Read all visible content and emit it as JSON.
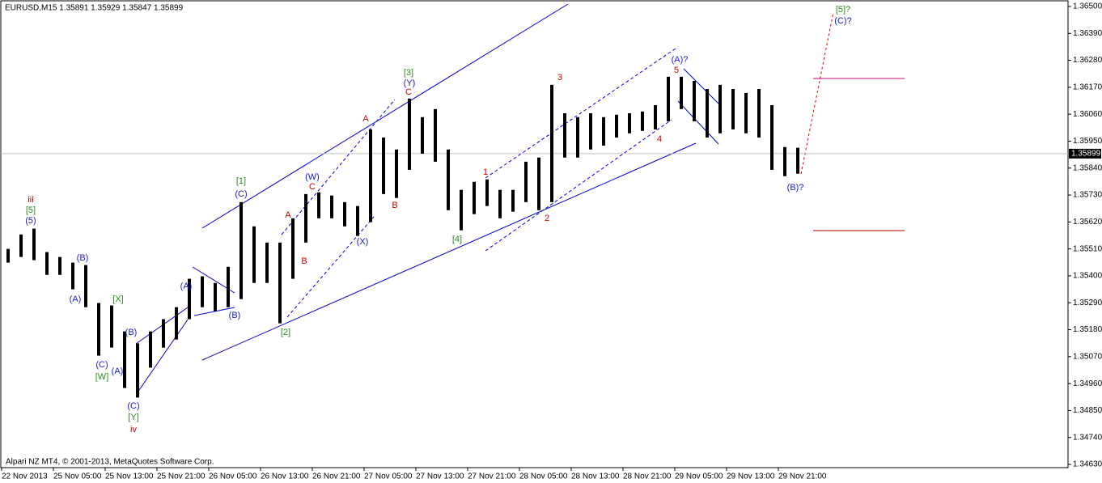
{
  "chart_data": {
    "type": "hilo",
    "title": "EURUSD,M15  1.35891 1.35929 1.35847 1.35899",
    "footer": "Alpari NZ MT4, © 2001-2013, MetaQuotes Software Corp.",
    "color": "#000000",
    "categories": [
      "22 Nov 2013",
      null,
      null,
      null,
      "25 Nov 05:00",
      null,
      null,
      null,
      "25 Nov 13:00",
      null,
      null,
      null,
      "25 Nov 21:00",
      null,
      null,
      null,
      "26 Nov 05:00",
      null,
      null,
      null,
      "26 Nov 13:00",
      null,
      null,
      null,
      "26 Nov 21:00",
      null,
      null,
      null,
      "27 Nov 05:00",
      null,
      null,
      null,
      "27 Nov 13:00",
      null,
      null,
      null,
      "27 Nov 21:00",
      null,
      null,
      null,
      "28 Nov 05:00",
      null,
      null,
      null,
      "28 Nov 13:00",
      null,
      null,
      null,
      "28 Nov 21:00",
      null,
      null,
      null,
      "29 Nov 05:00",
      null,
      null,
      null,
      "29 Nov 13:00",
      null,
      null,
      null,
      "29 Nov 21:00",
      null
    ],
    "high": [
      1.3551,
      1.35569,
      1.35593,
      1.35497,
      1.35477,
      1.35454,
      1.35444,
      1.35289,
      1.35279,
      1.35173,
      1.35124,
      1.35173,
      1.35223,
      1.35272,
      1.35388,
      1.35398,
      1.35371,
      1.35437,
      1.35701,
      1.35602,
      1.35536,
      1.35536,
      1.35635,
      1.35734,
      1.35741,
      1.35728,
      1.35701,
      1.35685,
      1.35998,
      1.35965,
      1.35916,
      1.36124,
      1.36048,
      1.36081,
      1.35916,
      1.35751,
      1.35784,
      1.35794,
      1.35751,
      1.35751,
      1.35866,
      1.35883,
      1.3618,
      1.36064,
      1.36048,
      1.36064,
      1.36048,
      1.36058,
      1.36064,
      1.36071,
      1.36097,
      1.36213,
      1.36213,
      1.36196,
      1.36163,
      1.3618,
      1.36163,
      1.36147,
      1.36163,
      1.36097,
      1.35926,
      1.35923
    ],
    "low": [
      1.35454,
      1.35477,
      1.35464,
      1.35404,
      1.35404,
      1.35345,
      1.35272,
      1.35074,
      1.35107,
      1.34942,
      1.34903,
      1.35025,
      1.35107,
      1.3514,
      1.35223,
      1.35272,
      1.35256,
      1.35272,
      1.35305,
      1.35371,
      1.35371,
      1.35206,
      1.35388,
      1.35536,
      1.35635,
      1.35635,
      1.35602,
      1.35563,
      1.35619,
      1.35734,
      1.35718,
      1.35833,
      1.35899,
      1.35866,
      1.35668,
      1.35586,
      1.35652,
      1.35685,
      1.35635,
      1.35662,
      1.35701,
      1.35668,
      1.35701,
      1.35883,
      1.35883,
      1.35916,
      1.35932,
      1.35965,
      1.35982,
      1.35992,
      1.35998,
      1.36031,
      1.36081,
      1.36031,
      1.35965,
      1.35982,
      1.35998,
      1.35982,
      1.35965,
      1.35833,
      1.35807,
      1.35817
    ],
    "ylim": [
      1.3463,
      1.365
    ],
    "yticks": [
      {
        "value": 1.365,
        "label": "1.36500"
      },
      {
        "value": 1.3639,
        "label": "1.36390"
      },
      {
        "value": 1.3628,
        "label": "1.36280"
      },
      {
        "value": 1.3617,
        "label": "1.36170"
      },
      {
        "value": 1.3606,
        "label": "1.36060"
      },
      {
        "value": 1.3595,
        "label": "1.35950"
      },
      {
        "value": 1.3584,
        "label": "1.35840"
      },
      {
        "value": 1.3573,
        "label": "1.35730"
      },
      {
        "value": 1.3562,
        "label": "1.35620"
      },
      {
        "value": 1.3551,
        "label": "1.35510"
      },
      {
        "value": 1.354,
        "label": "1.35400"
      },
      {
        "value": 1.3529,
        "label": "1.35290"
      },
      {
        "value": 1.3518,
        "label": "1.35180"
      },
      {
        "value": 1.3507,
        "label": "1.35070"
      },
      {
        "value": 1.3496,
        "label": "1.34960"
      },
      {
        "value": 1.3485,
        "label": "1.34850"
      },
      {
        "value": 1.3474,
        "label": "1.34740"
      },
      {
        "value": 1.3463,
        "label": "1.34630"
      }
    ],
    "current_price": {
      "value": 1.35899,
      "label": "1.35899"
    },
    "annotations": [
      {
        "text": "iii",
        "color": "#cc0000"
      },
      {
        "text": "[5]",
        "color": "#2e8b22"
      },
      {
        "text": "(5)",
        "color": "#1a1acc"
      },
      {
        "text": "(B)",
        "color": "#1a1acc"
      },
      {
        "text": "(A)",
        "color": "#1a1acc"
      },
      {
        "text": "[X]",
        "color": "#2e8b22"
      },
      {
        "text": "(C)",
        "color": "#1a1acc"
      },
      {
        "text": "[W]",
        "color": "#2e8b22"
      },
      {
        "text": "(A)",
        "color": "#1a1acc"
      },
      {
        "text": "(B)",
        "color": "#1a1acc"
      },
      {
        "text": "(C)",
        "color": "#1a1acc"
      },
      {
        "text": "[Y]",
        "color": "#2e8b22"
      },
      {
        "text": "iv",
        "color": "#cc0000"
      },
      {
        "text": "(A)",
        "color": "#1a1acc"
      },
      {
        "text": "(B)",
        "color": "#1a1acc"
      },
      {
        "text": "[1]",
        "color": "#2e8b22"
      },
      {
        "text": "(C)",
        "color": "#1a1acc"
      },
      {
        "text": "A",
        "color": "#cc0000"
      },
      {
        "text": "B",
        "color": "#cc0000"
      },
      {
        "text": "C",
        "color": "#cc0000"
      },
      {
        "text": "(W)",
        "color": "#1a1acc"
      },
      {
        "text": "[2]",
        "color": "#2e8b22"
      },
      {
        "text": "(X)",
        "color": "#1a1acc"
      },
      {
        "text": "A",
        "color": "#cc0000"
      },
      {
        "text": "B",
        "color": "#cc0000"
      },
      {
        "text": "[3]",
        "color": "#2e8b22"
      },
      {
        "text": "(Y)",
        "color": "#1a1acc"
      },
      {
        "text": "C",
        "color": "#cc0000"
      },
      {
        "text": "[4]",
        "color": "#2e8b22"
      },
      {
        "text": "1",
        "color": "#cc0000"
      },
      {
        "text": "2",
        "color": "#cc0000"
      },
      {
        "text": "3",
        "color": "#cc0000"
      },
      {
        "text": "4",
        "color": "#cc0000"
      },
      {
        "text": "5",
        "color": "#cc0000"
      },
      {
        "text": "(A)?",
        "color": "#1a1acc"
      },
      {
        "text": "(B)?",
        "color": "#1a1acc"
      },
      {
        "text": "[5]?",
        "color": "#2e8b22"
      },
      {
        "text": "(C)?",
        "color": "#1a1acc"
      }
    ]
  }
}
